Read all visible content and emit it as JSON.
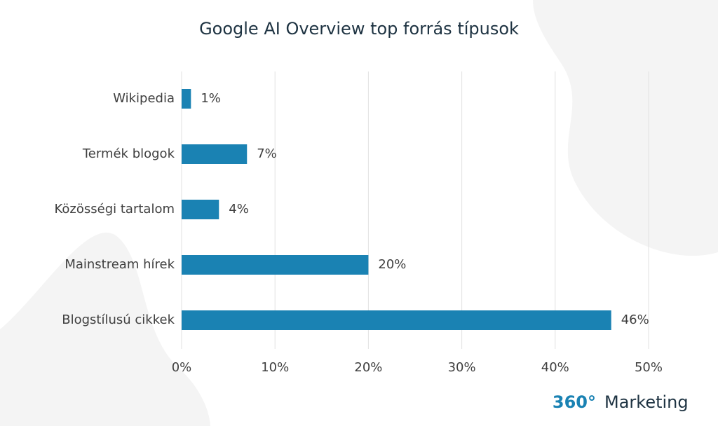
{
  "chart_data": {
    "type": "bar",
    "orientation": "horizontal",
    "title": "Google AI Overview top forrás típusok",
    "categories": [
      "Wikipedia",
      "Termék blogok",
      "Közösségi tartalom",
      "Mainstream hírek",
      "Blogstílusú cikkek"
    ],
    "values": [
      1,
      7,
      4,
      20,
      46
    ],
    "value_labels": [
      "1%",
      "7%",
      "4%",
      "20%",
      "46%"
    ],
    "color": "#1a82b3",
    "xlim": [
      0,
      50
    ],
    "xticks": [
      {
        "value": 0,
        "label": "0%"
      },
      {
        "value": 10,
        "label": "10%"
      },
      {
        "value": 20,
        "label": "20%"
      },
      {
        "value": 30,
        "label": "30%"
      },
      {
        "value": 40,
        "label": "40%"
      },
      {
        "value": 50,
        "label": "50%"
      }
    ],
    "grid": true
  },
  "brand": {
    "number": "360°",
    "name": "Marketing"
  }
}
